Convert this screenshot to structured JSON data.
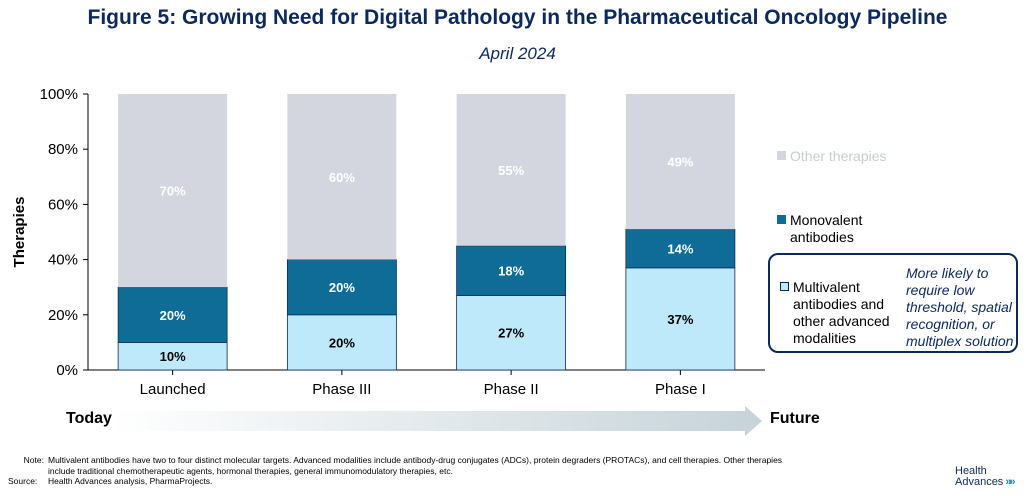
{
  "header": {
    "title": "Figure 5: Growing Need for Digital Pathology in the Pharmaceutical Oncology Pipeline",
    "subtitle": "April 2024"
  },
  "chart_data": {
    "type": "bar",
    "stacked": true,
    "categories": [
      "Launched",
      "Phase III",
      "Phase II",
      "Phase I"
    ],
    "series": [
      {
        "name": "Multivalent antibodies and other advanced modalities",
        "values": [
          10,
          20,
          27,
          37
        ],
        "labels": [
          "10%",
          "20%",
          "27%",
          "37%"
        ],
        "color": "#bde9fb",
        "label_color": "#000000"
      },
      {
        "name": "Monovalent antibodies",
        "values": [
          20,
          20,
          18,
          14
        ],
        "labels": [
          "20%",
          "20%",
          "18%",
          "14%"
        ],
        "color": "#0e6c96",
        "label_color": "#ffffff"
      },
      {
        "name": "Other therapies",
        "values": [
          70,
          60,
          55,
          49
        ],
        "labels": [
          "70%",
          "60%",
          "55%",
          "49%"
        ],
        "color": "#d3d6de",
        "label_color": "#ffffff"
      }
    ],
    "ylabel": "Therapies",
    "ylim": [
      0,
      100
    ],
    "yticks": [
      "0%",
      "20%",
      "40%",
      "60%",
      "80%",
      "100%"
    ],
    "legend_position": "right"
  },
  "callout": {
    "note": "More likely to require low threshold, spatial recognition, or multiplex solution"
  },
  "timeline": {
    "start": "Today",
    "end": "Future"
  },
  "notes": {
    "note_label": "Note:",
    "note_text": "Multivalent antibodies have two to four distinct molecular targets. Advanced modalities include antibody-drug conjugates (ADCs), protein degraders (PROTACs), and cell therapies. Other therapies include traditional chemotherapeutic agents, hormonal therapies, general immunomodulatory therapies, etc.",
    "source_label": "Source:",
    "source_text": "Health Advances analysis, PharmaProjects."
  },
  "logo": {
    "line1": "Health",
    "line2": "Advances",
    "chevrons": "»»"
  }
}
